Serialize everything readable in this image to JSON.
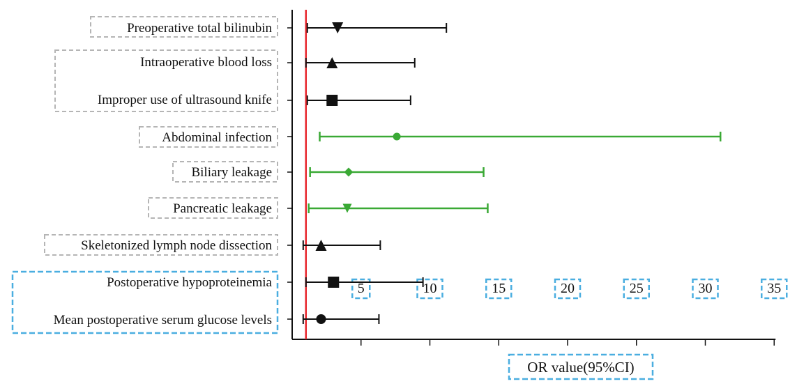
{
  "chart_data": {
    "type": "forest",
    "xlabel": "OR value(95%CI)",
    "title": "",
    "xlim": [
      0,
      35
    ],
    "xticks": [
      5,
      10,
      15,
      20,
      25,
      30,
      35
    ],
    "reference_line": {
      "x": 1,
      "color": "#e8262c"
    },
    "group_colors": {
      "black": "#111111",
      "green": "#3aa935"
    },
    "rows": [
      {
        "label": "Preoperative total bilinubin",
        "or": 3.3,
        "lower": 1.1,
        "upper": 11.2,
        "marker": "triangle-down",
        "color": "black"
      },
      {
        "label": "Intraoperative blood loss",
        "or": 2.9,
        "lower": 1.0,
        "upper": 8.9,
        "marker": "triangle-up",
        "color": "black"
      },
      {
        "label": "Improper use of ultrasound knife",
        "or": 2.9,
        "lower": 1.1,
        "upper": 8.6,
        "marker": "square",
        "color": "black"
      },
      {
        "label": "Abdominal infection",
        "or": 7.6,
        "lower": 2.0,
        "upper": 31.1,
        "marker": "circle",
        "color": "green"
      },
      {
        "label": "Biliary leakage",
        "or": 4.1,
        "lower": 1.3,
        "upper": 13.9,
        "marker": "diamond",
        "color": "green"
      },
      {
        "label": "Pancreatic leakage",
        "or": 4.0,
        "lower": 1.2,
        "upper": 14.2,
        "marker": "triangle-down",
        "color": "green"
      },
      {
        "label": "Skeletonized lymph node dissection",
        "or": 2.1,
        "lower": 0.8,
        "upper": 6.4,
        "marker": "triangle-up",
        "color": "black"
      },
      {
        "label": "Postoperative hypoproteinemia",
        "or": 3.0,
        "lower": 1.0,
        "upper": 9.5,
        "marker": "square",
        "color": "black"
      },
      {
        "label": "Mean postoperative serum glucose levels",
        "or": 2.1,
        "lower": 0.8,
        "upper": 6.3,
        "marker": "circle",
        "color": "black"
      }
    ]
  }
}
